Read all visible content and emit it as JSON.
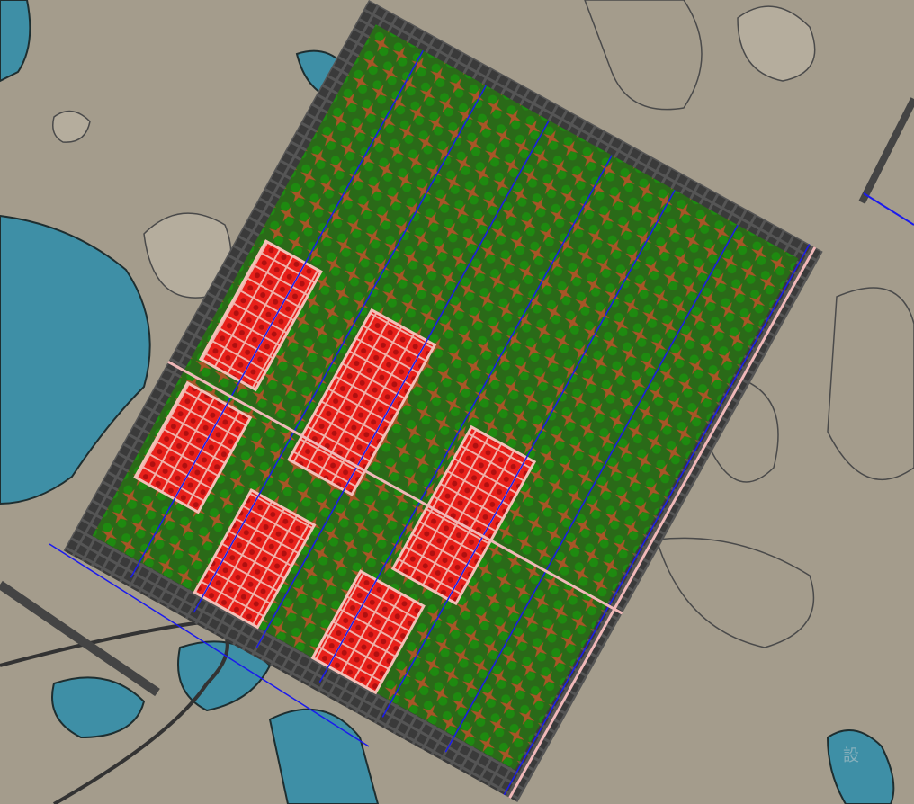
{
  "view": "map",
  "colors": {
    "terrain": "#a49c8c",
    "terrain_light": "#b8b0a0",
    "water": "#3e8fa6",
    "water_deep": "#2f7890",
    "grid": "#3c3c3c",
    "vegetation": "#1f7a12",
    "building": "#e8201a",
    "power_line": "#1a1aee",
    "rail": "#f0b8b8"
  },
  "watermark": "設"
}
